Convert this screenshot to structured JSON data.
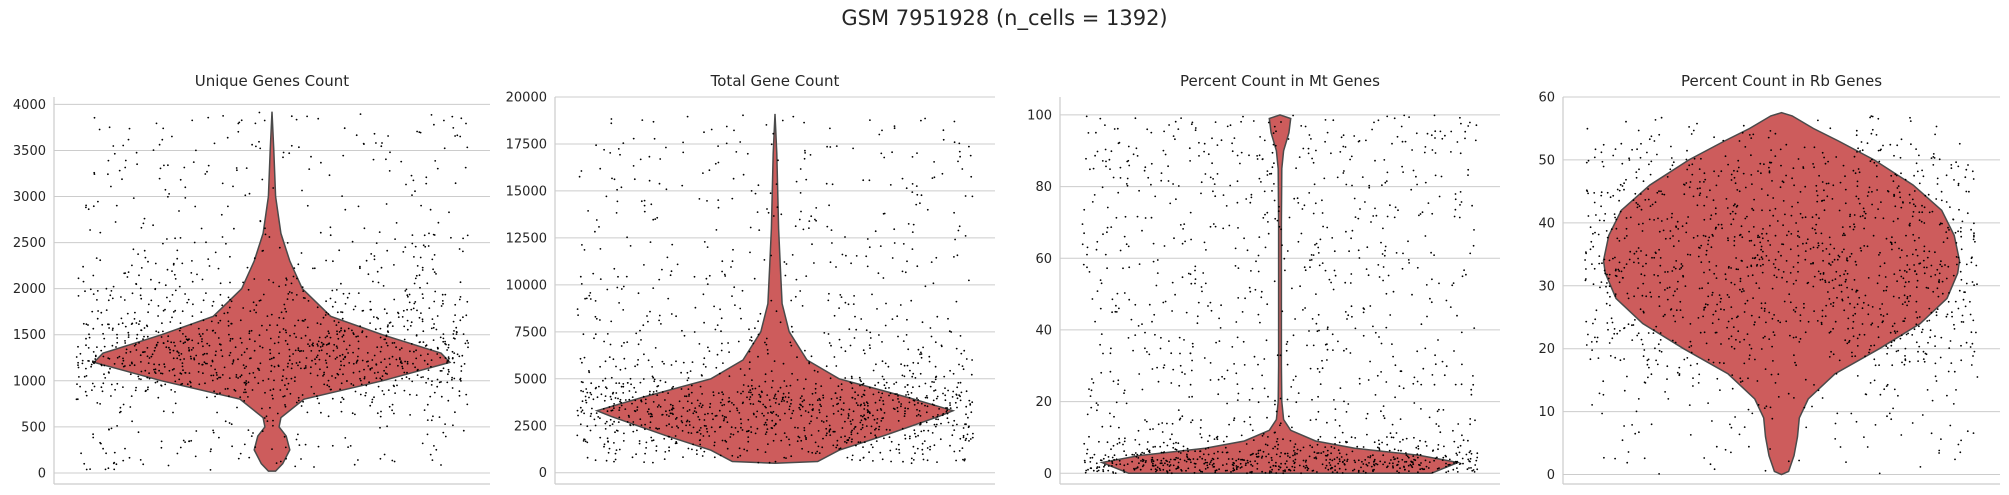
{
  "suptitle": "GSM 7951928 (n_cells = 1392)",
  "colors": {
    "violin_fill": "#cd5c5c",
    "violin_edge": "#4a4a4a",
    "points": "#000000",
    "grid": "#cccccc"
  },
  "chart_data": [
    {
      "type": "violin",
      "title": "Unique Genes Count",
      "xlabel": "",
      "ylabel": "",
      "ylim": [
        -120,
        4080
      ],
      "yticks": [
        0,
        500,
        1000,
        1500,
        2000,
        2500,
        3000,
        3500,
        4000
      ],
      "grid": true,
      "density": [
        [
          20,
          0.02
        ],
        [
          100,
          0.06
        ],
        [
          250,
          0.1
        ],
        [
          400,
          0.08
        ],
        [
          500,
          0.04
        ],
        [
          600,
          0.05
        ],
        [
          800,
          0.18
        ],
        [
          1000,
          0.62
        ],
        [
          1200,
          1.0
        ],
        [
          1300,
          0.95
        ],
        [
          1500,
          0.62
        ],
        [
          1700,
          0.33
        ],
        [
          2000,
          0.17
        ],
        [
          2300,
          0.1
        ],
        [
          2600,
          0.05
        ],
        [
          3000,
          0.02
        ],
        [
          3500,
          0.01
        ],
        [
          3920,
          0.0
        ]
      ],
      "points": {
        "n": 1392,
        "median": 1250,
        "spread": 260,
        "min": 0,
        "max": 3950
      }
    },
    {
      "type": "violin",
      "title": "Total Gene Count",
      "xlabel": "",
      "ylabel": "",
      "ylim": [
        -600,
        20000
      ],
      "yticks": [
        0,
        2500,
        5000,
        7500,
        10000,
        12500,
        15000,
        17500,
        20000
      ],
      "grid": true,
      "density": [
        [
          500,
          0.0
        ],
        [
          600,
          0.24
        ],
        [
          1200,
          0.36
        ],
        [
          2000,
          0.62
        ],
        [
          3000,
          0.92
        ],
        [
          3300,
          1.0
        ],
        [
          4000,
          0.75
        ],
        [
          5000,
          0.36
        ],
        [
          6000,
          0.18
        ],
        [
          7500,
          0.08
        ],
        [
          9000,
          0.04
        ],
        [
          11000,
          0.03
        ],
        [
          13000,
          0.02
        ],
        [
          15000,
          0.015
        ],
        [
          17000,
          0.01
        ],
        [
          19100,
          0.0
        ]
      ],
      "points": {
        "n": 1392,
        "median": 3300,
        "spread": 1000,
        "min": 500,
        "max": 19100
      }
    },
    {
      "type": "violin",
      "title": "Percent Count in Mt Genes",
      "xlabel": "",
      "ylabel": "",
      "ylim": [
        -3,
        105
      ],
      "yticks": [
        0,
        20,
        40,
        60,
        80,
        100
      ],
      "grid": true,
      "density": [
        [
          0,
          0.85
        ],
        [
          1,
          0.9
        ],
        [
          3,
          1.0
        ],
        [
          5,
          0.78
        ],
        [
          7,
          0.42
        ],
        [
          9,
          0.2
        ],
        [
          12,
          0.06
        ],
        [
          15,
          0.02
        ],
        [
          20,
          0.01
        ],
        [
          30,
          0.008
        ],
        [
          50,
          0.008
        ],
        [
          70,
          0.008
        ],
        [
          85,
          0.01
        ],
        [
          90,
          0.02
        ],
        [
          95,
          0.05
        ],
        [
          99,
          0.06
        ],
        [
          100,
          0.0
        ]
      ],
      "points": {
        "n": 1392,
        "median": 3,
        "spread": 2,
        "min": 0,
        "max": 100
      }
    },
    {
      "type": "violin",
      "title": "Percent Count in Rb Genes",
      "xlabel": "",
      "ylabel": "",
      "ylim": [
        -1.5,
        60
      ],
      "yticks": [
        0,
        10,
        20,
        30,
        40,
        50,
        60
      ],
      "grid": true,
      "density": [
        [
          0,
          0.0
        ],
        [
          0.5,
          0.04
        ],
        [
          3,
          0.07
        ],
        [
          6,
          0.09
        ],
        [
          9,
          0.1
        ],
        [
          12,
          0.15
        ],
        [
          16,
          0.3
        ],
        [
          20,
          0.55
        ],
        [
          24,
          0.78
        ],
        [
          28,
          0.93
        ],
        [
          32,
          0.99
        ],
        [
          34,
          1.0
        ],
        [
          38,
          0.97
        ],
        [
          42,
          0.9
        ],
        [
          46,
          0.74
        ],
        [
          50,
          0.52
        ],
        [
          53,
          0.32
        ],
        [
          55,
          0.18
        ],
        [
          57,
          0.06
        ],
        [
          57.5,
          0.0
        ]
      ],
      "points": {
        "n": 1392,
        "median": 33,
        "spread": 10,
        "min": 0,
        "max": 57
      }
    }
  ]
}
